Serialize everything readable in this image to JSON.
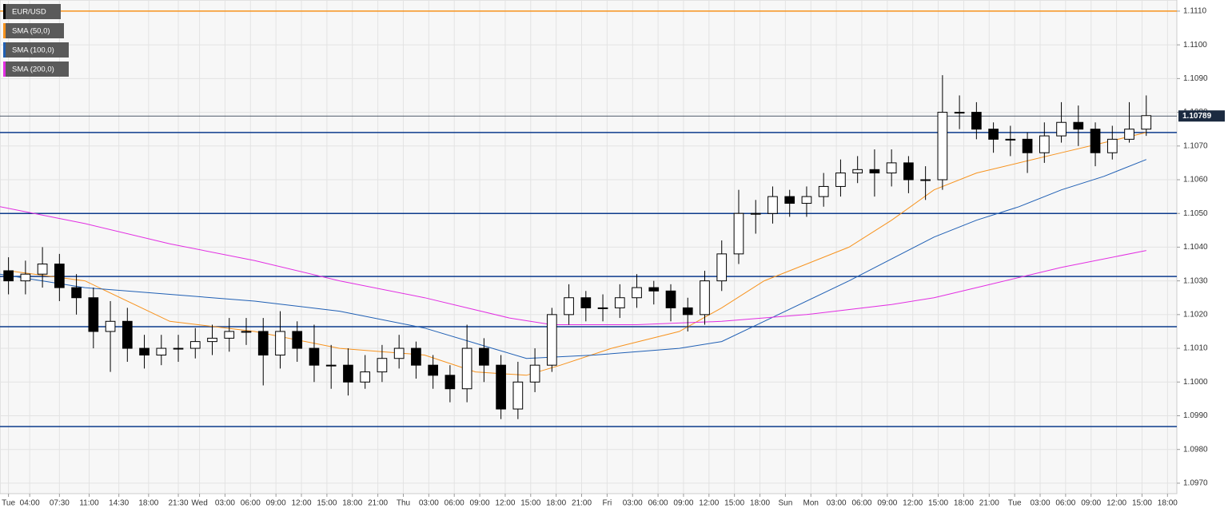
{
  "chart_data": {
    "type": "candlestick",
    "legend": "top-left",
    "grid": true,
    "xlim": [
      0,
      138.6
    ],
    "ylim": [
      1.09669,
      1.11133
    ],
    "xticks": [
      {
        "value": 1,
        "label": "Tue"
      },
      {
        "value": 3.5,
        "label": "04:00"
      },
      {
        "value": 7,
        "label": "07:30"
      },
      {
        "value": 10.5,
        "label": "11:00"
      },
      {
        "value": 14,
        "label": "14:30"
      },
      {
        "value": 17.5,
        "label": "18:00"
      },
      {
        "value": 21,
        "label": "21:30"
      },
      {
        "value": 23.5,
        "label": "Wed"
      },
      {
        "value": 26.5,
        "label": "03:00"
      },
      {
        "value": 29.5,
        "label": "06:00"
      },
      {
        "value": 32.5,
        "label": "09:00"
      },
      {
        "value": 35.5,
        "label": "12:00"
      },
      {
        "value": 38.5,
        "label": "15:00"
      },
      {
        "value": 41.5,
        "label": "18:00"
      },
      {
        "value": 44.5,
        "label": "21:00"
      },
      {
        "value": 47.5,
        "label": "Thu"
      },
      {
        "value": 50.5,
        "label": "03:00"
      },
      {
        "value": 53.5,
        "label": "06:00"
      },
      {
        "value": 56.5,
        "label": "09:00"
      },
      {
        "value": 59.5,
        "label": "12:00"
      },
      {
        "value": 62.5,
        "label": "15:00"
      },
      {
        "value": 65.5,
        "label": "18:00"
      },
      {
        "value": 68.5,
        "label": "21:00"
      },
      {
        "value": 71.5,
        "label": "Fri"
      },
      {
        "value": 74.5,
        "label": "03:00"
      },
      {
        "value": 77.5,
        "label": "06:00"
      },
      {
        "value": 80.5,
        "label": "09:00"
      },
      {
        "value": 83.5,
        "label": "12:00"
      },
      {
        "value": 86.5,
        "label": "15:00"
      },
      {
        "value": 89.5,
        "label": "18:00"
      },
      {
        "value": 92.5,
        "label": "Sun"
      },
      {
        "value": 95.5,
        "label": "Mon"
      },
      {
        "value": 98.5,
        "label": "03:00"
      },
      {
        "value": 101.5,
        "label": "06:00"
      },
      {
        "value": 104.5,
        "label": "09:00"
      },
      {
        "value": 107.5,
        "label": "12:00"
      },
      {
        "value": 110.5,
        "label": "15:00"
      },
      {
        "value": 113.5,
        "label": "18:00"
      },
      {
        "value": 116.5,
        "label": "21:00"
      },
      {
        "value": 119.5,
        "label": "Tue"
      },
      {
        "value": 122.5,
        "label": "03:00"
      },
      {
        "value": 125.5,
        "label": "06:00"
      },
      {
        "value": 128.5,
        "label": "09:00"
      },
      {
        "value": 131.5,
        "label": "12:00"
      },
      {
        "value": 134.5,
        "label": "15:00"
      },
      {
        "value": 137.5,
        "label": "18:00"
      }
    ],
    "yticks": [
      {
        "value": 1.097,
        "label": "1.0970"
      },
      {
        "value": 1.098,
        "label": "1.0980"
      },
      {
        "value": 1.099,
        "label": "1.0990"
      },
      {
        "value": 1.1,
        "label": "1.1000"
      },
      {
        "value": 1.101,
        "label": "1.1010"
      },
      {
        "value": 1.102,
        "label": "1.1020"
      },
      {
        "value": 1.103,
        "label": "1.1030"
      },
      {
        "value": 1.104,
        "label": "1.1040"
      },
      {
        "value": 1.105,
        "label": "1.1050"
      },
      {
        "value": 1.106,
        "label": "1.1060"
      },
      {
        "value": 1.107,
        "label": "1.1070"
      },
      {
        "value": 1.108,
        "label": "1.1080"
      },
      {
        "value": 1.109,
        "label": "1.1090"
      },
      {
        "value": 1.11,
        "label": "1.1100"
      },
      {
        "value": 1.111,
        "label": "1.1110"
      }
    ],
    "candles": {
      "name": "EUR/USD",
      "color": "#000000",
      "x": [
        1,
        3,
        5,
        7,
        9,
        11,
        13,
        15,
        17,
        19,
        21,
        23,
        25,
        27,
        29,
        31,
        33,
        35,
        37,
        39,
        41,
        43,
        45,
        47,
        49,
        51,
        53,
        55,
        57,
        59,
        61,
        63,
        65,
        67,
        69,
        71,
        73,
        75,
        77,
        79,
        81,
        83,
        85,
        87,
        89,
        91,
        93,
        95,
        97,
        99,
        101,
        103,
        105,
        107,
        109,
        111,
        113,
        115,
        117,
        119,
        121,
        123,
        125,
        127,
        129,
        131,
        133,
        135
      ],
      "open": [
        1.1033,
        1.103,
        1.1032,
        1.1035,
        1.1028,
        1.1025,
        1.1015,
        1.1018,
        1.101,
        1.1008,
        1.101,
        1.101,
        1.1012,
        1.1013,
        1.1015,
        1.1015,
        1.1008,
        1.1015,
        1.101,
        1.1005,
        1.1005,
        1.1,
        1.1003,
        1.1007,
        1.101,
        1.1005,
        1.1002,
        1.0998,
        1.101,
        1.1005,
        1.0992,
        1.1,
        1.1005,
        1.102,
        1.1025,
        1.1022,
        1.1022,
        1.1025,
        1.1028,
        1.1027,
        1.1022,
        1.102,
        1.103,
        1.1038,
        1.105,
        1.105,
        1.1055,
        1.1053,
        1.1055,
        1.1058,
        1.1062,
        1.1063,
        1.1062,
        1.1065,
        1.106,
        1.106,
        1.108,
        1.108,
        1.1075,
        1.1072,
        1.1072,
        1.1068,
        1.1073,
        1.1077,
        1.1075,
        1.1068,
        1.1072,
        1.1075
      ],
      "high": [
        1.1037,
        1.1036,
        1.104,
        1.1038,
        1.1032,
        1.1028,
        1.1024,
        1.1022,
        1.1014,
        1.1014,
        1.1014,
        1.1016,
        1.1017,
        1.1019,
        1.1019,
        1.1019,
        1.1021,
        1.1018,
        1.1017,
        1.1011,
        1.101,
        1.1008,
        1.1011,
        1.1014,
        1.1012,
        1.1008,
        1.1005,
        1.1017,
        1.1013,
        1.1008,
        1.1006,
        1.101,
        1.1022,
        1.1029,
        1.1027,
        1.1026,
        1.1029,
        1.1032,
        1.103,
        1.1029,
        1.1025,
        1.1033,
        1.1042,
        1.1057,
        1.1054,
        1.1058,
        1.1057,
        1.1058,
        1.1062,
        1.1066,
        1.1067,
        1.1069,
        1.1069,
        1.1067,
        1.1064,
        1.1091,
        1.1085,
        1.1083,
        1.1077,
        1.1076,
        1.1074,
        1.1077,
        1.1083,
        1.1082,
        1.1077,
        1.1076,
        1.1083,
        1.1085
      ],
      "low": [
        1.1026,
        1.1026,
        1.1028,
        1.1024,
        1.102,
        1.101,
        1.1003,
        1.1006,
        1.1004,
        1.1005,
        1.1006,
        1.1007,
        1.1008,
        1.1009,
        1.1011,
        1.0999,
        1.1004,
        1.1006,
        1.1,
        1.0998,
        1.0996,
        1.0998,
        1.1,
        1.1004,
        1.1001,
        1.0998,
        1.0994,
        1.0994,
        1.1,
        1.0989,
        1.0989,
        1.0997,
        1.1003,
        1.1017,
        1.1018,
        1.1018,
        1.1019,
        1.1022,
        1.1023,
        1.1018,
        1.1015,
        1.1017,
        1.1027,
        1.1035,
        1.1044,
        1.1047,
        1.1049,
        1.1049,
        1.1052,
        1.1055,
        1.1059,
        1.1055,
        1.1058,
        1.1056,
        1.1054,
        1.1057,
        1.1075,
        1.1072,
        1.1068,
        1.1067,
        1.1062,
        1.1065,
        1.1071,
        1.107,
        1.1064,
        1.1066,
        1.1071,
        1.1073
      ],
      "close": [
        1.103,
        1.1032,
        1.1035,
        1.1028,
        1.1025,
        1.1015,
        1.1018,
        1.101,
        1.1008,
        1.101,
        1.101,
        1.1012,
        1.1013,
        1.1015,
        1.1015,
        1.1008,
        1.1015,
        1.101,
        1.1005,
        1.1005,
        1.1,
        1.1003,
        1.1007,
        1.101,
        1.1005,
        1.1002,
        1.0998,
        1.101,
        1.1005,
        1.0992,
        1.1,
        1.1005,
        1.102,
        1.1025,
        1.1022,
        1.1022,
        1.1025,
        1.1028,
        1.1027,
        1.1022,
        1.102,
        1.103,
        1.1038,
        1.105,
        1.105,
        1.1055,
        1.1053,
        1.1055,
        1.1058,
        1.1062,
        1.1063,
        1.1062,
        1.1065,
        1.106,
        1.106,
        1.108,
        1.108,
        1.1075,
        1.1072,
        1.1072,
        1.1068,
        1.1073,
        1.1077,
        1.1075,
        1.1068,
        1.1072,
        1.1075,
        1.1079
      ]
    },
    "series": [
      {
        "name": "SMA (50,0)",
        "color": "#f7931e",
        "x": [
          1,
          10,
          20,
          30,
          40,
          50,
          56,
          62,
          66,
          72,
          80,
          85,
          90,
          100,
          105,
          110,
          115,
          120,
          125,
          130,
          135
        ],
        "values": [
          1.1033,
          1.103,
          1.1018,
          1.1015,
          1.101,
          1.1008,
          1.1003,
          1.1002,
          1.1005,
          1.101,
          1.1015,
          1.1022,
          1.103,
          1.104,
          1.1048,
          1.1057,
          1.1062,
          1.1065,
          1.1068,
          1.1071,
          1.1074
        ]
      },
      {
        "name": "SMA (100,0)",
        "color": "#1f5fb4",
        "x": [
          0,
          10,
          20,
          30,
          40,
          50,
          58,
          62,
          70,
          80,
          85,
          90,
          100,
          110,
          115,
          120,
          125,
          130,
          135
        ],
        "values": [
          1.1032,
          1.1028,
          1.1026,
          1.1024,
          1.1021,
          1.1016,
          1.101,
          1.1007,
          1.1008,
          1.101,
          1.1012,
          1.1018,
          1.103,
          1.1043,
          1.1048,
          1.1052,
          1.1057,
          1.1061,
          1.1066
        ]
      },
      {
        "name": "SMA (200,0)",
        "color": "#e22ee2",
        "x": [
          0,
          10,
          20,
          30,
          40,
          50,
          60,
          65,
          75,
          85,
          95,
          105,
          110,
          115,
          125,
          135
        ],
        "values": [
          1.1052,
          1.1047,
          1.1041,
          1.1036,
          1.103,
          1.1025,
          1.1019,
          1.1017,
          1.1017,
          1.1018,
          1.102,
          1.1023,
          1.1025,
          1.1028,
          1.1034,
          1.1039
        ]
      }
    ],
    "hlines": [
      {
        "value": 1.111,
        "color": "#f7931e"
      },
      {
        "value": 1.1074,
        "color": "#0d3b8c"
      },
      {
        "value": 1.105,
        "color": "#0d3b8c"
      },
      {
        "value": 1.10313,
        "color": "#0d3b8c"
      },
      {
        "value": 1.10164,
        "color": "#0d3b8c"
      },
      {
        "value": 1.09868,
        "color": "#0d3b8c"
      }
    ],
    "last_price": 1.10789
  }
}
